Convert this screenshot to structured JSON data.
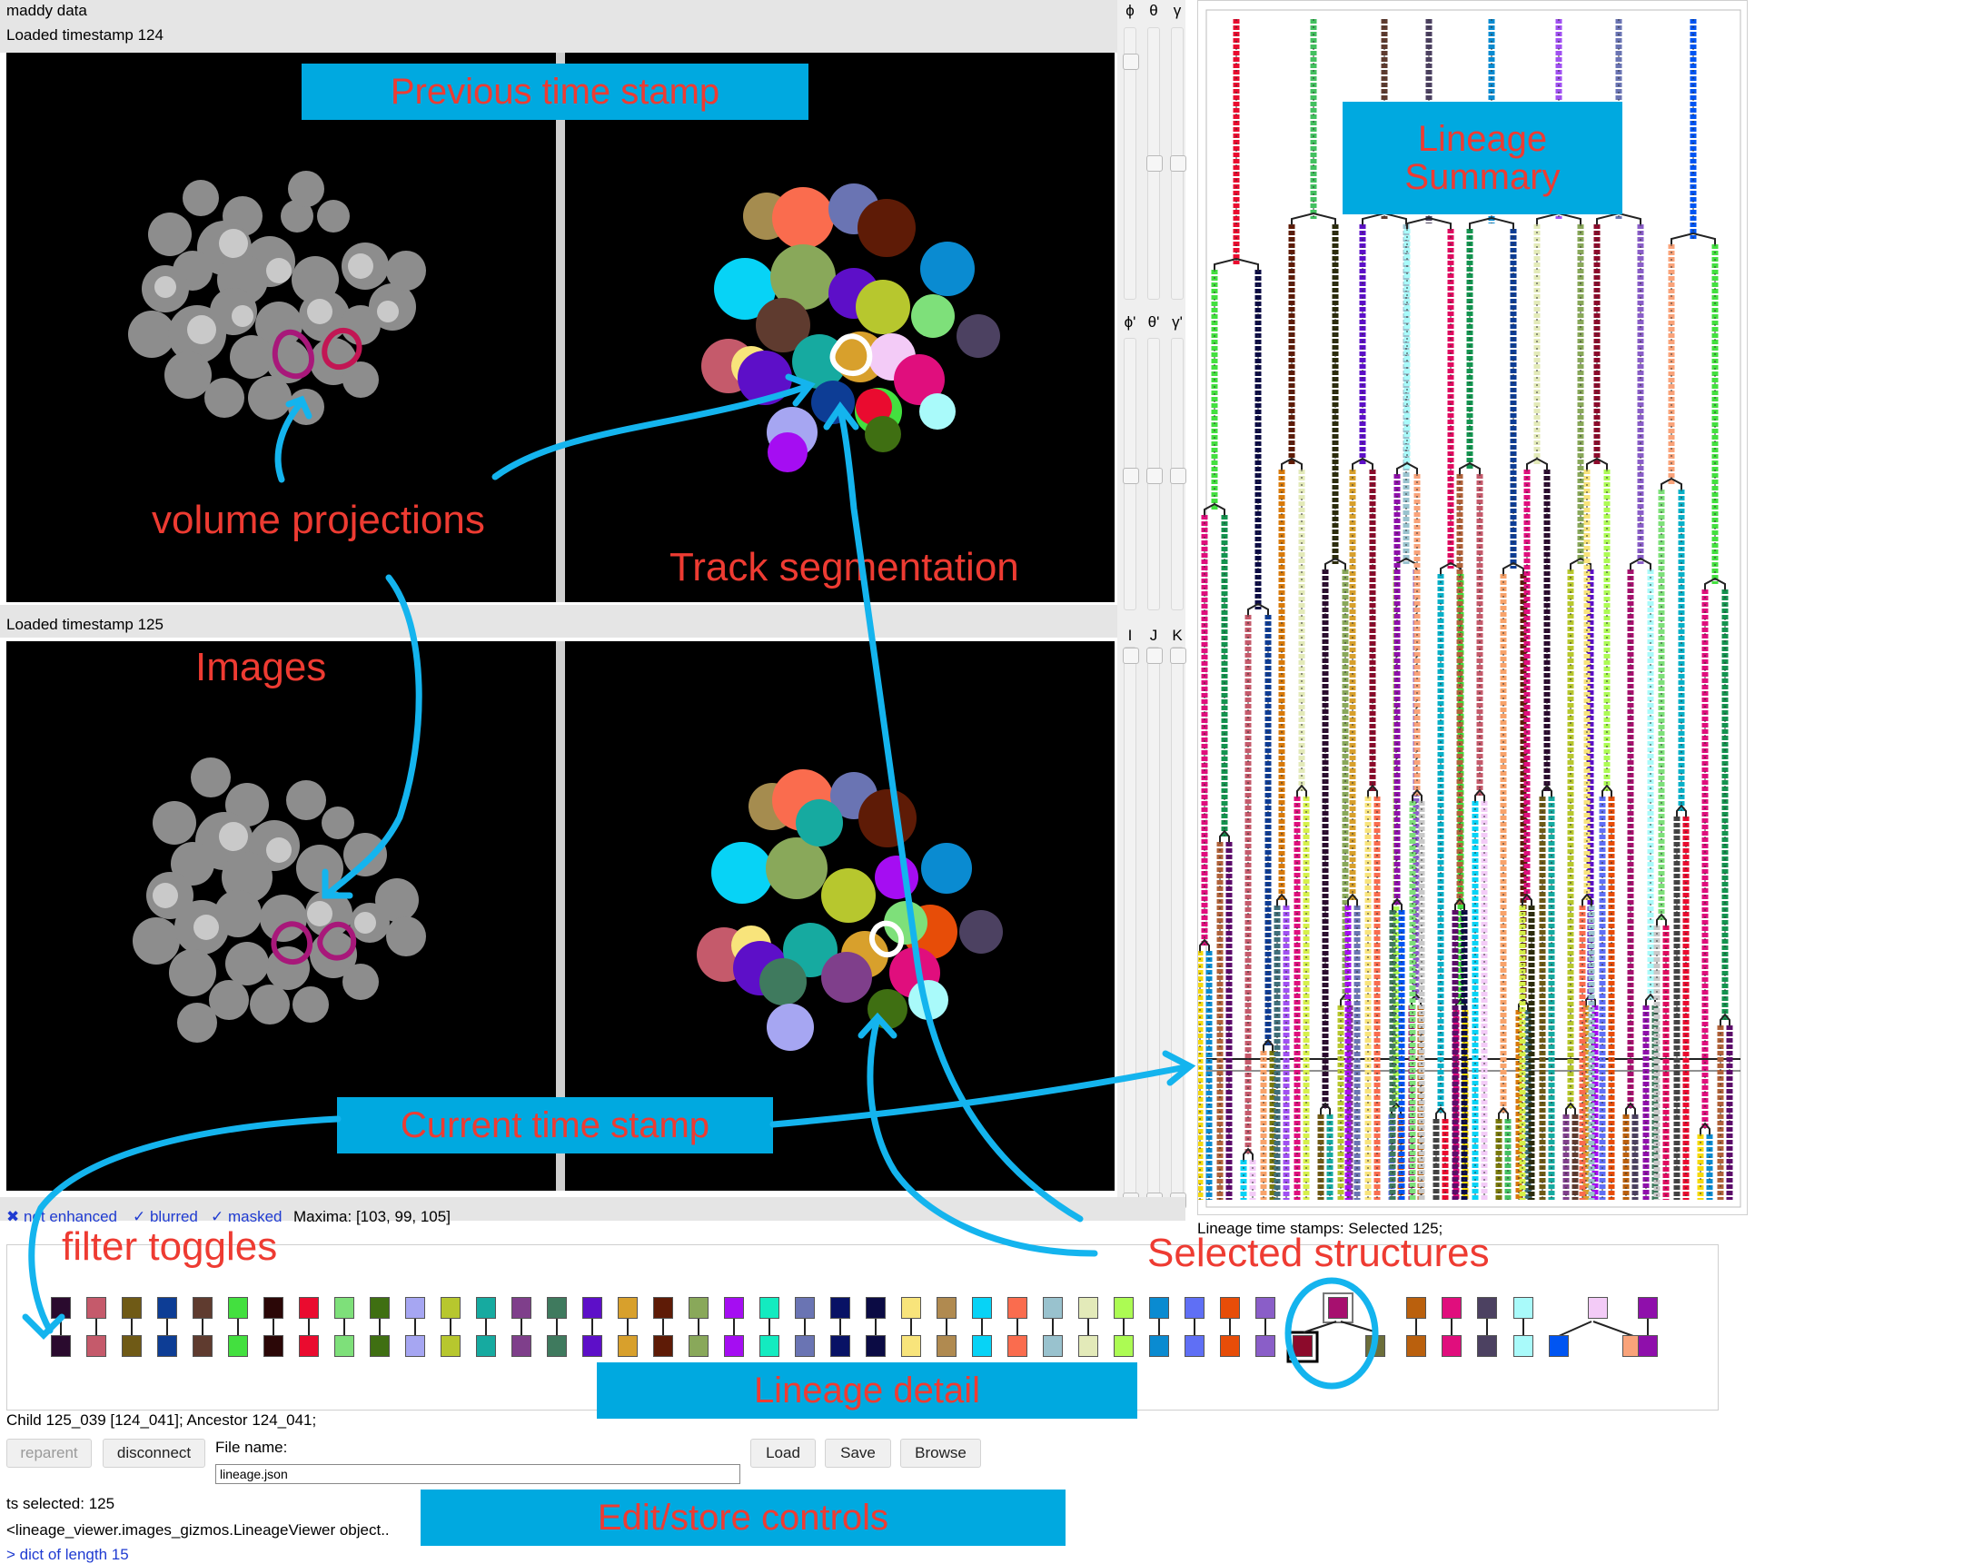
{
  "app": {
    "title": "maddy data",
    "top_status": "Loaded timestamp 124",
    "bottom_status": "Loaded timestamp 125"
  },
  "sliders": {
    "rotation_labels": [
      "ϕ",
      "θ",
      "γ"
    ],
    "rotation2_labels": [
      "ϕ'",
      "θ'",
      "γ'"
    ],
    "index_labels": [
      "I",
      "J",
      "K"
    ]
  },
  "filters": {
    "not_enhanced": "✖ not enhanced",
    "blurred": "✓ blurred",
    "masked": "✓ masked",
    "maxima": "Maxima: [103, 99, 105]"
  },
  "lineage_summary": {
    "caption": "Lineage time stamps: Selected 125;"
  },
  "lineage_detail": {
    "top_colors": [
      "#2a0a2e",
      "#c55a6b",
      "#6f5a16",
      "#0d3d95",
      "#5f3b2f",
      "#43e03f",
      "#2b0707",
      "#ea0b2f",
      "#7ee07a",
      "#3f6f12",
      "#a6a6f2",
      "#b7c72e",
      "#16aaa0",
      "#7f3f8b",
      "#3f7a5e",
      "#5d0fc8",
      "#d8a02c",
      "#5e1b06",
      "#89a85a",
      "#a50df2",
      "#13ebc0",
      "#6a74b3",
      "#081265",
      "#0b0b44",
      "#f8e47b",
      "#b08a50",
      "#07d3f6",
      "#fa6c4e",
      "#99c2ce",
      "#e3eab9",
      "#acfb53",
      "#0a8bd1",
      "#5f6ff5",
      "#e74d08",
      "#8a5ec8",
      "#a7106f",
      "#ba600d",
      "#e00e7d",
      "#4c4161",
      "#a9fafa",
      "#f3cbf7",
      "#8f0fab"
    ],
    "bottom_colors": [
      "#2a0a2e",
      "#c55a6b",
      "#6f5a16",
      "#0d3d95",
      "#5f3b2f",
      "#43e03f",
      "#2b0707",
      "#ea0b2f",
      "#7ee07a",
      "#3f6f12",
      "#a6a6f2",
      "#b7c72e",
      "#16aaa0",
      "#7f3f8b",
      "#3f7a5e",
      "#5d0fc8",
      "#d8a02c",
      "#5e1b06",
      "#89a85a",
      "#a50df2",
      "#13ebc0",
      "#6a74b3",
      "#081265",
      "#0b0b44",
      "#f8e47b",
      "#b08a50",
      "#07d3f6",
      "#fa6c4e",
      "#99c2ce",
      "#e3eab9",
      "#acfb53",
      "#0a8bd1",
      "#5f6ff5",
      "#e74d08",
      "#8a5ec8",
      "#8c0a2b",
      "#6c6e3a",
      "#ba600d",
      "#e00e7d",
      "#4c4161",
      "#a9fafa",
      "#0055f2",
      "#f9a37a",
      "#8f0fab"
    ]
  },
  "selection": {
    "text": "Child 125_039 [124_041]; Ancestor 124_041;"
  },
  "controls": {
    "reparent": "reparent",
    "disconnect": "disconnect",
    "file_label": "File name:",
    "file_value": "lineage.json",
    "load": "Load",
    "save": "Save",
    "browse": "Browse"
  },
  "footer": {
    "ts_selected": "ts selected: 125",
    "object_repr": "<lineage_viewer.images_gizmos.LineageViewer object..",
    "dict_text": "> dict of length 15"
  },
  "annotations": {
    "previous_time_stamp": "Previous time stamp",
    "volume_projections": "volume projections",
    "track_segmentation": "Track segmentation",
    "images": "Images",
    "current_time_stamp": "Current time stamp",
    "filter_toggles": "filter toggles",
    "selected_structures": "Selected structures",
    "lineage_detail": "Lineage detail",
    "edit_store_controls": "Edit/store controls",
    "lineage_summary_1": "Lineage",
    "lineage_summary_2": "Summary"
  },
  "colors": {
    "callout_bg": "#00a9e0",
    "annotation_text": "#ee3b32",
    "arrow": "#14b4ee",
    "toggle_text": "#1f3bd1"
  }
}
